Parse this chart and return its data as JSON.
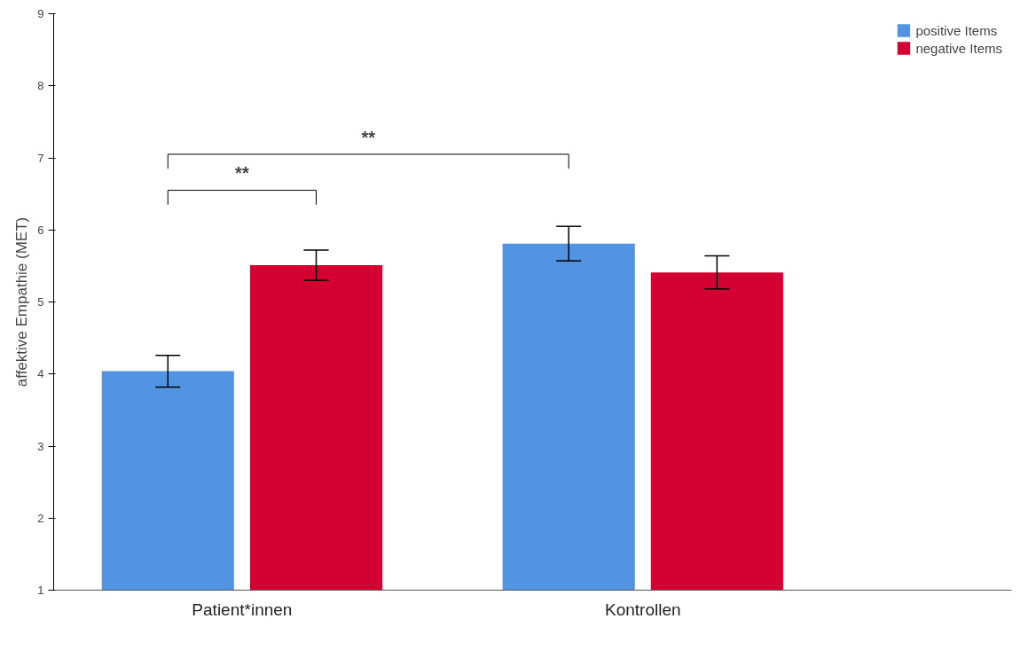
{
  "chart_data": {
    "type": "bar",
    "ylabel": "affektive Empathie (MET)",
    "categories": [
      "Patient*innen",
      "Kontrollen"
    ],
    "series": [
      {
        "name": "positive Items",
        "color": "#5294e2",
        "values": [
          4.04,
          5.81
        ],
        "errors": [
          0.22,
          0.24
        ]
      },
      {
        "name": "negative Items",
        "color": "#d50032",
        "values": [
          5.51,
          5.41
        ],
        "errors": [
          0.21,
          0.23
        ]
      }
    ],
    "ylim": [
      1,
      9
    ],
    "yticks": [
      1,
      2,
      3,
      4,
      5,
      6,
      7,
      8,
      9
    ],
    "grid": false,
    "legend": "top right",
    "annotations": [
      "**",
      "**"
    ]
  }
}
